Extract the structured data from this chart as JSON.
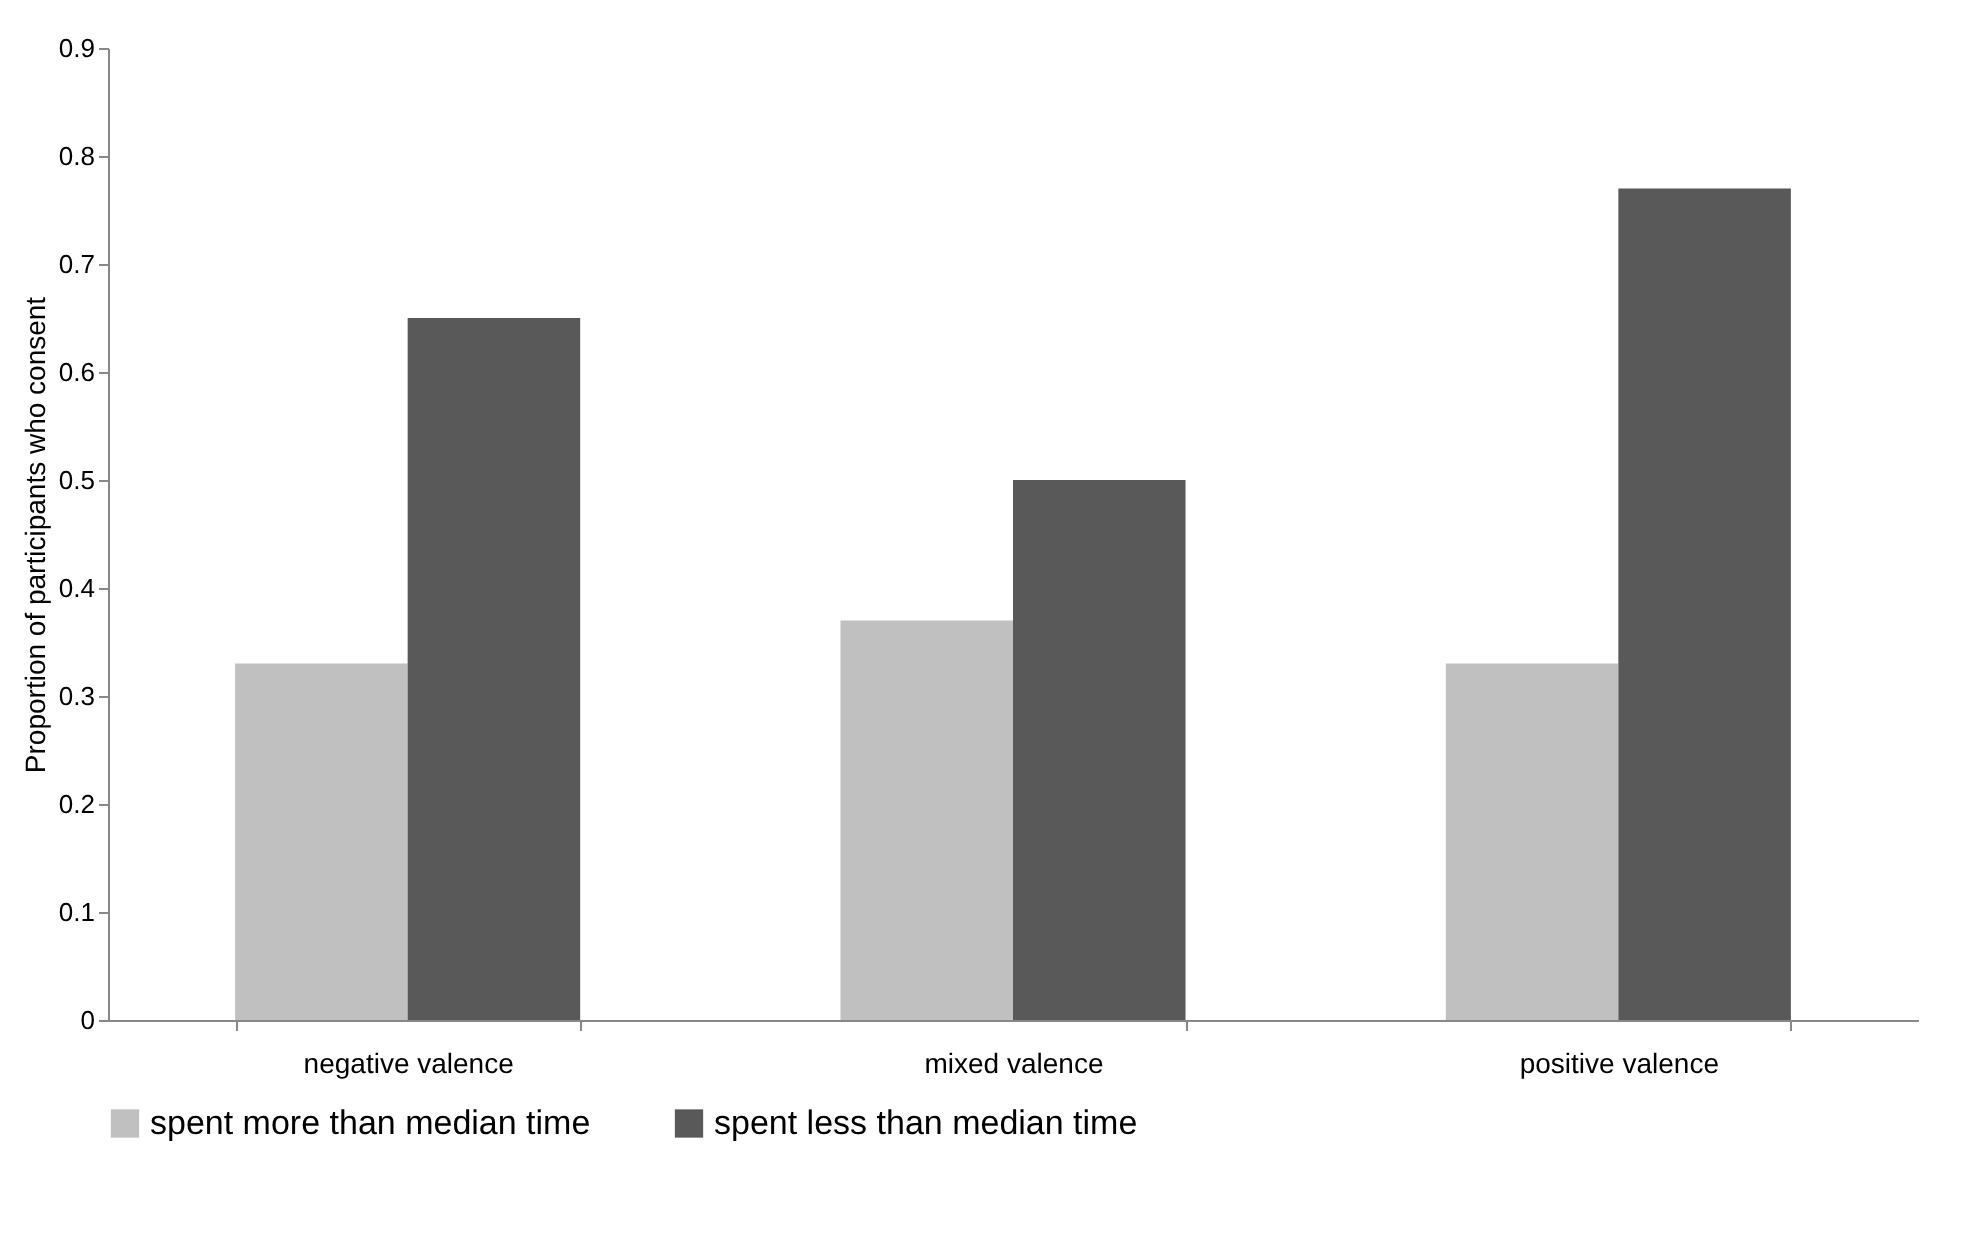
{
  "chart_data": {
    "type": "bar",
    "ylabel": "Proportion of participants who consent",
    "categories": [
      "negative valence",
      "mixed valence",
      "positive valence"
    ],
    "series": [
      {
        "name": "spent more than median time",
        "color": "#c0c0c0",
        "values": [
          0.33,
          0.37,
          0.33
        ]
      },
      {
        "name": "spent less than median time",
        "color": "#595959",
        "values": [
          0.65,
          0.5,
          0.77
        ]
      }
    ],
    "ylim": [
      0,
      0.9
    ],
    "yticks": [
      0,
      0.1,
      0.2,
      0.3,
      0.4,
      0.5,
      0.6,
      0.7,
      0.8,
      0.9
    ],
    "legend": "bottom"
  }
}
